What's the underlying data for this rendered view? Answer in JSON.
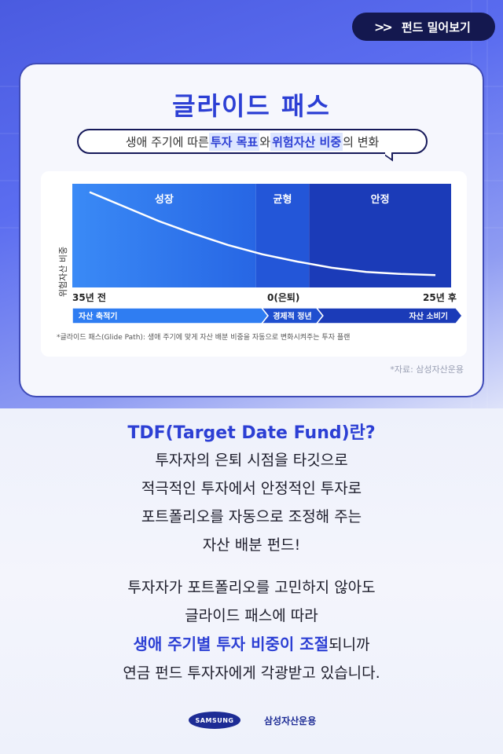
{
  "tag": {
    "label": "펀드 밀어보기",
    "icon": "double-chevron-right-icon"
  },
  "card": {
    "title": "글라이드 패스",
    "subtitle": {
      "part1": "생애 주기에 따른 ",
      "hl1": "투자 목표",
      "part2": "와 ",
      "hl2": "위험자산 비중",
      "part3": "의 변화"
    },
    "source": "*자료: 삼성자산운용"
  },
  "chart_data": {
    "type": "line",
    "title": "",
    "ylabel": "위험자산 비중",
    "x_ticks": [
      "35년 전",
      "0(은퇴)",
      "25년 후"
    ],
    "phases": [
      "성장",
      "균형",
      "안정"
    ],
    "stages": [
      "자산 축적기",
      "경제적 정년",
      "자산 소비기"
    ],
    "footnote": "*글라이드 패스(Glide Path): 생애 주기에 맞게 자산 배분 비중을 자동으로 변화시켜주는 투자 플랜",
    "series": [
      {
        "x": [
          0,
          0.1,
          0.2,
          0.3,
          0.4,
          0.5,
          0.6,
          0.7,
          0.8,
          0.9,
          1.0
        ],
        "y": [
          0.92,
          0.78,
          0.64,
          0.52,
          0.41,
          0.32,
          0.25,
          0.19,
          0.15,
          0.13,
          0.12
        ]
      }
    ],
    "colors": [
      "#2f7df2",
      "#2356d8",
      "#1b3bb8"
    ]
  },
  "body": {
    "headline": "TDF(Target Date Fund)란?",
    "p1": [
      "투자자의 은퇴 시점을 타깃으로",
      "적극적인 투자에서 안정적인 투자로",
      "포트폴리오를 자동으로 조정해 주는",
      "자산 배분 펀드!"
    ],
    "p2_line1": "투자자가 포트폴리오를 고민하지 않아도",
    "p2_line2": "글라이드 패스에 따라",
    "p2_emph": "생애 주기별 투자 비중이 조절",
    "p2_emph_tail": "되니까",
    "p2_line4": "연금 펀드 투자자에게 각광받고 있습니다."
  },
  "footer": {
    "logo_text": "SAMSUNG",
    "company": "삼성자산운용"
  }
}
